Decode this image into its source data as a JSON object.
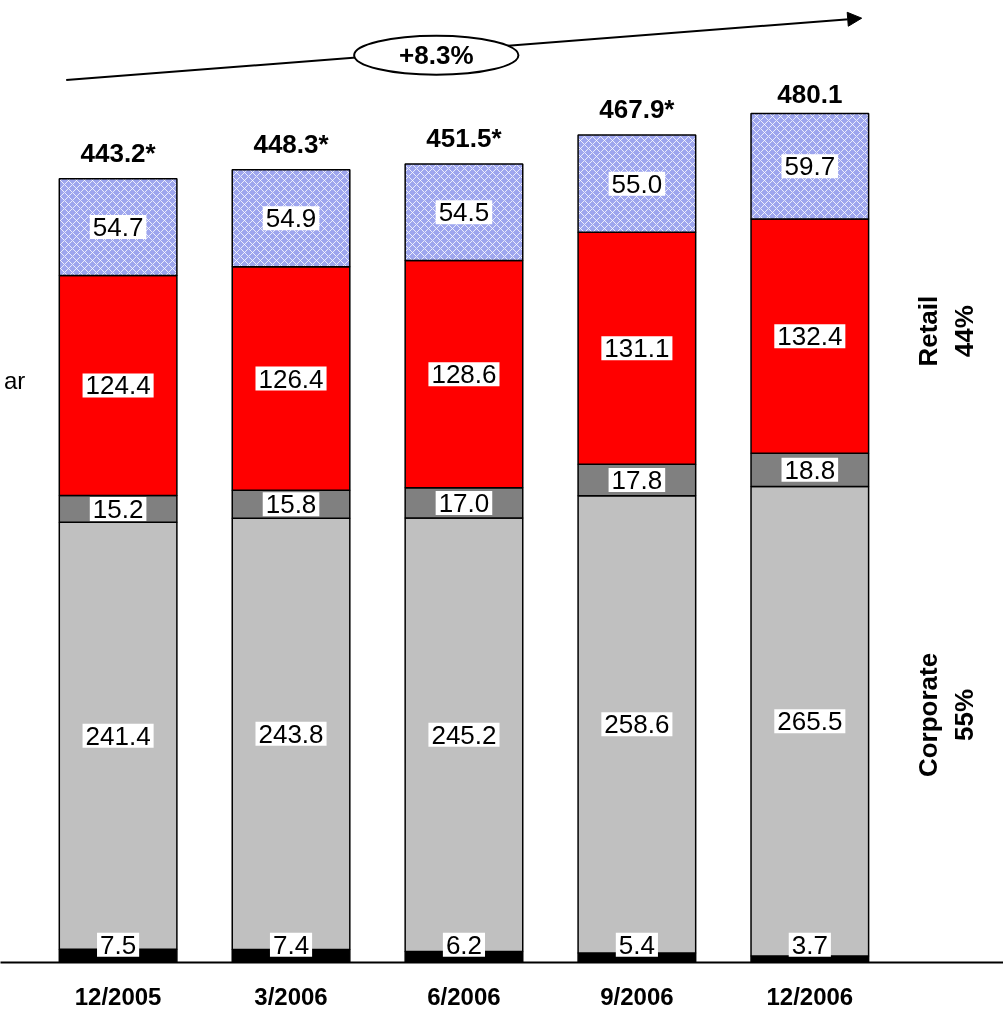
{
  "chart_data": {
    "type": "bar",
    "stacked": true,
    "categories": [
      "12/2005",
      "3/2006",
      "6/2006",
      "9/2006",
      "12/2006"
    ],
    "series": [
      {
        "color": "#000000",
        "values": [
          7.5,
          7.4,
          6.2,
          5.4,
          3.7
        ],
        "value_labels": [
          "7.5",
          "7.4",
          "6.2",
          "5.4",
          "3.7"
        ]
      },
      {
        "color": "#c0c0c0",
        "values": [
          241.4,
          243.8,
          245.2,
          258.6,
          265.5
        ],
        "value_labels": [
          "241.4",
          "243.8",
          "245.2",
          "258.6",
          "265.5"
        ]
      },
      {
        "color": "#808080",
        "values": [
          15.2,
          15.8,
          17.0,
          17.8,
          18.8
        ],
        "value_labels": [
          "15.2",
          "15.8",
          "17.0",
          "17.8",
          "18.8"
        ]
      },
      {
        "color": "#ff0000",
        "values": [
          124.4,
          126.4,
          128.6,
          131.1,
          132.4
        ],
        "value_labels": [
          "124.4",
          "126.4",
          "128.6",
          "131.1",
          "132.4"
        ]
      },
      {
        "color": "#9ea6ee",
        "values": [
          54.7,
          54.9,
          54.5,
          55.0,
          59.7
        ],
        "value_labels": [
          "54.7",
          "54.9",
          "54.5",
          "55.0",
          "59.7"
        ]
      }
    ],
    "totals": [
      "443.2*",
      "448.3*",
      "451.5*",
      "467.9*",
      "480.1"
    ],
    "annotations": [
      "+8.3%",
      "Retail\n44%",
      "Corporate\n55%",
      "ar"
    ]
  }
}
